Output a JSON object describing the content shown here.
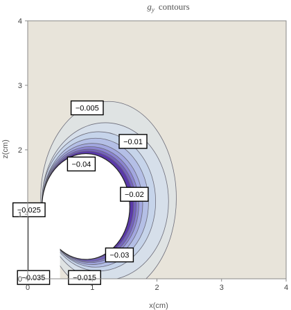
{
  "chart_data": {
    "type": "contour",
    "title_main": "g",
    "title_sub": "y",
    "title_rest": "contours",
    "xlabel": "x(cm)",
    "ylabel": "z(cm)",
    "xlim": [
      0,
      4
    ],
    "ylim": [
      0,
      4
    ],
    "xticks": [
      0,
      1,
      2,
      3,
      4
    ],
    "yticks": [
      0,
      1,
      2,
      3,
      4
    ],
    "background_color": "#e8e4da",
    "contour_levels": [
      {
        "level": "-0.005",
        "label_x": 0.92,
        "label_z": 2.65,
        "fill": "#dfe3e3"
      },
      {
        "level": "-0.01",
        "label_x": 1.63,
        "label_z": 2.13,
        "fill": "#d6dfea"
      },
      {
        "level": "-0.015",
        "label_x": 0.88,
        "label_z": 0.02,
        "fill": "#c6d4ea"
      },
      {
        "level": "-0.02",
        "label_x": 1.65,
        "label_z": 1.31,
        "fill": "#b4bfe6"
      },
      {
        "level": "-0.025",
        "label_x": 0.02,
        "label_z": 1.07,
        "fill": "#a2a7e0"
      },
      {
        "level": "-0.03",
        "label_x": 1.42,
        "label_z": 0.37,
        "fill": "#8b84d1"
      },
      {
        "level": "-0.035",
        "label_x": 0.09,
        "label_z": 0.02,
        "fill": "#7462c0"
      },
      {
        "level": "-0.04",
        "label_x": 0.83,
        "label_z": 1.78,
        "fill": "#5a3aa8"
      }
    ],
    "hole_color": "#ffffff"
  }
}
